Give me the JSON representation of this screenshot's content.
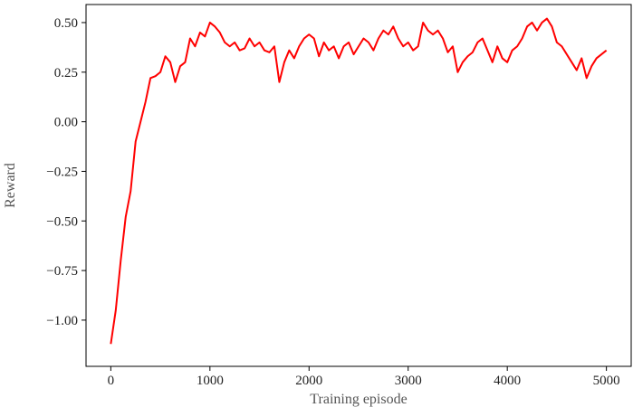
{
  "chart_data": {
    "type": "line",
    "x_label": "Training episode",
    "y_label": "Reward",
    "x": [
      0,
      50,
      100,
      150,
      200,
      250,
      300,
      350,
      400,
      450,
      500,
      550,
      600,
      650,
      700,
      750,
      800,
      850,
      900,
      950,
      1000,
      1050,
      1100,
      1150,
      1200,
      1250,
      1300,
      1350,
      1400,
      1450,
      1500,
      1550,
      1600,
      1650,
      1700,
      1750,
      1800,
      1850,
      1900,
      1950,
      2000,
      2050,
      2100,
      2150,
      2200,
      2250,
      2300,
      2350,
      2400,
      2450,
      2500,
      2550,
      2600,
      2650,
      2700,
      2750,
      2800,
      2850,
      2900,
      2950,
      3000,
      3050,
      3100,
      3150,
      3200,
      3250,
      3300,
      3350,
      3400,
      3450,
      3500,
      3550,
      3600,
      3650,
      3700,
      3750,
      3800,
      3850,
      3900,
      3950,
      4000,
      4050,
      4100,
      4150,
      4200,
      4250,
      4300,
      4350,
      4400,
      4450,
      4500,
      4550,
      4600,
      4650,
      4700,
      4750,
      4800,
      4850,
      4900,
      4950,
      5000
    ],
    "series": [
      {
        "name": "Reward",
        "color": "#ff0000",
        "values": [
          -1.12,
          -0.95,
          -0.7,
          -0.48,
          -0.35,
          -0.1,
          0.0,
          0.1,
          0.22,
          0.23,
          0.25,
          0.33,
          0.3,
          0.2,
          0.28,
          0.3,
          0.42,
          0.38,
          0.45,
          0.43,
          0.5,
          0.48,
          0.45,
          0.4,
          0.38,
          0.4,
          0.36,
          0.37,
          0.42,
          0.38,
          0.4,
          0.36,
          0.35,
          0.38,
          0.2,
          0.3,
          0.36,
          0.32,
          0.38,
          0.42,
          0.44,
          0.42,
          0.33,
          0.4,
          0.36,
          0.38,
          0.32,
          0.38,
          0.4,
          0.34,
          0.38,
          0.42,
          0.4,
          0.36,
          0.42,
          0.46,
          0.44,
          0.48,
          0.42,
          0.38,
          0.4,
          0.36,
          0.38,
          0.5,
          0.46,
          0.44,
          0.46,
          0.42,
          0.35,
          0.38,
          0.25,
          0.3,
          0.33,
          0.35,
          0.4,
          0.42,
          0.36,
          0.3,
          0.38,
          0.32,
          0.3,
          0.36,
          0.38,
          0.42,
          0.48,
          0.5,
          0.46,
          0.5,
          0.52,
          0.48,
          0.4,
          0.38,
          0.34,
          0.3,
          0.26,
          0.32,
          0.22,
          0.28,
          0.32,
          0.34,
          0.36
        ]
      }
    ],
    "xlim": [
      -250,
      5250
    ],
    "xticks": [
      0,
      1000,
      2000,
      3000,
      4000,
      5000
    ],
    "ylim": [
      -1.233,
      0.591
    ],
    "yticks": [
      {
        "value": -1.0,
        "label": "−1.00"
      },
      {
        "value": -0.75,
        "label": "−0.75"
      },
      {
        "value": -0.5,
        "label": "−0.50"
      },
      {
        "value": -0.25,
        "label": "−0.25"
      },
      {
        "value": 0,
        "label": "0.00"
      },
      {
        "value": 0.25,
        "label": "0.25"
      },
      {
        "value": 0.5,
        "label": "0.50"
      }
    ],
    "grid": false
  }
}
